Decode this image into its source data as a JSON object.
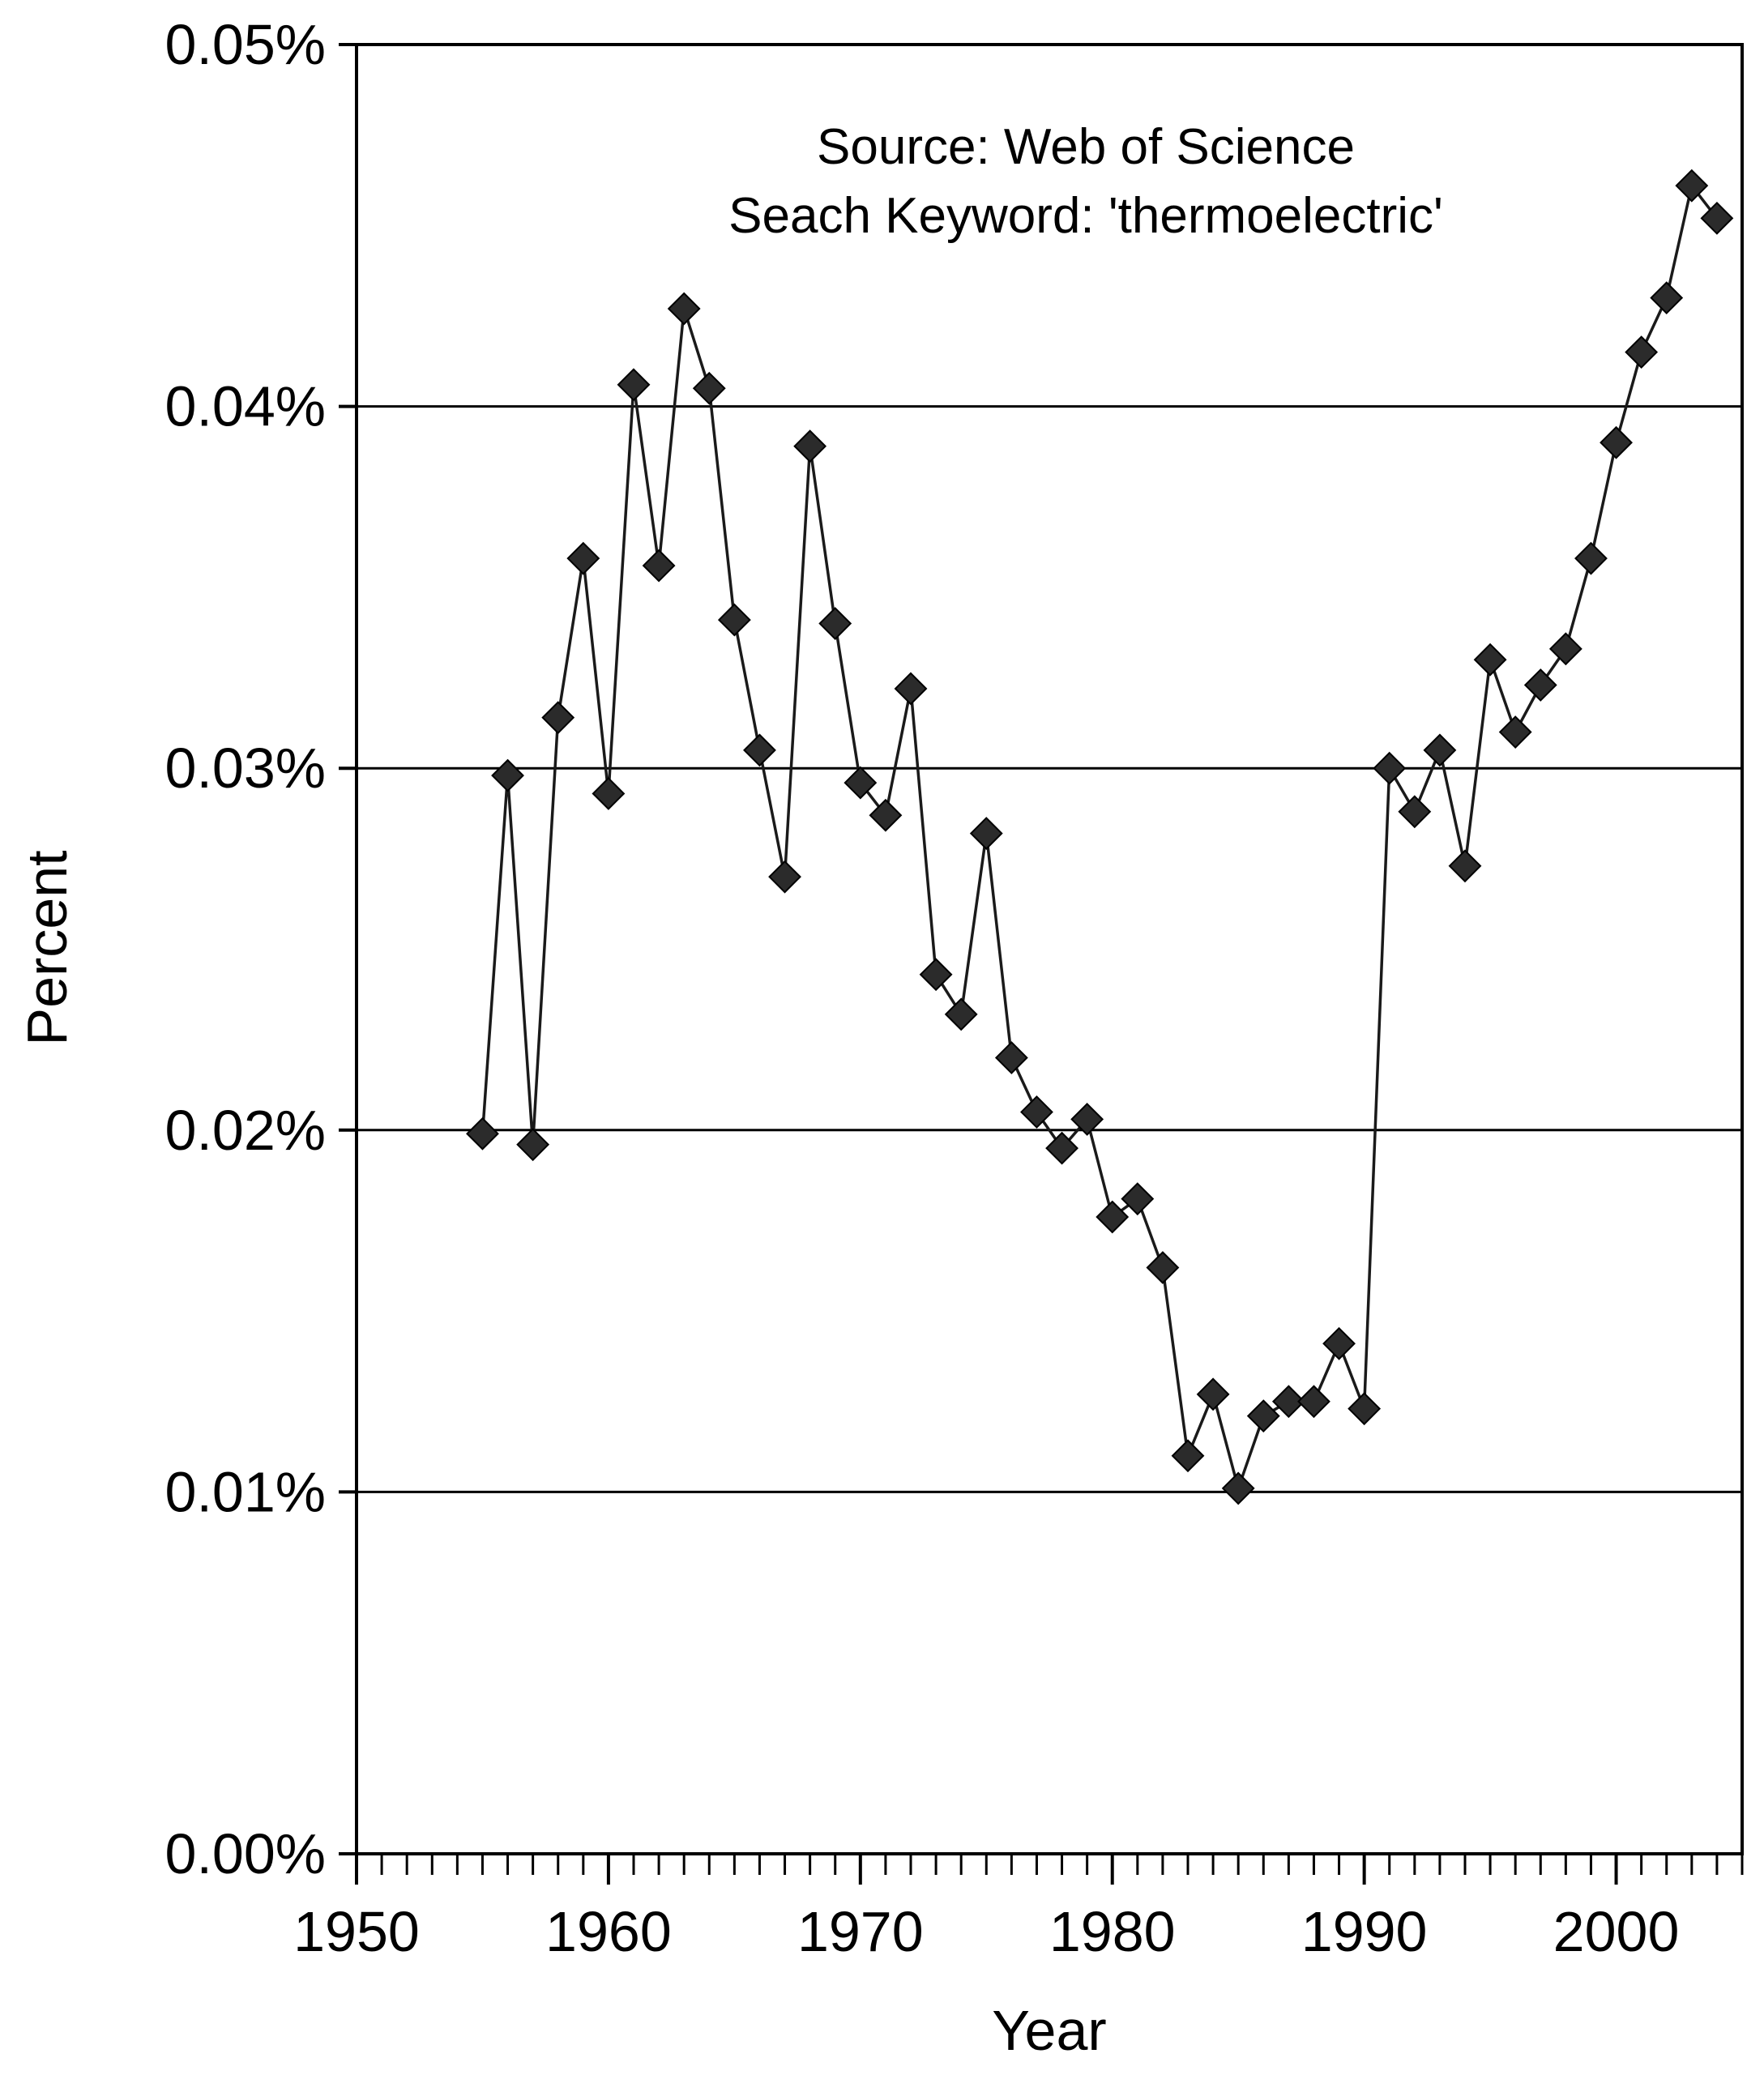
{
  "chart_data": {
    "type": "line",
    "title": "",
    "xlabel": "Year",
    "ylabel": "Percent",
    "xlim": [
      1950,
      2005
    ],
    "ylim": [
      0,
      0.05
    ],
    "x_ticks": [
      1950,
      1960,
      1970,
      1980,
      1990,
      2000
    ],
    "x_tick_labels": [
      "1950",
      "1960",
      "1970",
      "1980",
      "1990",
      "2000"
    ],
    "y_ticks": [
      0,
      0.01,
      0.02,
      0.03,
      0.04,
      0.05
    ],
    "y_tick_labels": [
      "0.00%",
      "0.01%",
      "0.02%",
      "0.03%",
      "0.04%",
      "0.05%"
    ],
    "gridlines": "horizontal",
    "marker": "diamond",
    "annotations": [
      "Source:  Web of Science",
      "Seach Keyword: 'thermoelectric'"
    ],
    "x": [
      1955,
      1956,
      1957,
      1958,
      1959,
      1960,
      1961,
      1962,
      1963,
      1964,
      1965,
      1966,
      1967,
      1968,
      1969,
      1970,
      1971,
      1972,
      1973,
      1974,
      1975,
      1976,
      1977,
      1978,
      1979,
      1980,
      1981,
      1982,
      1983,
      1984,
      1985,
      1986,
      1987,
      1988,
      1989,
      1990,
      1991,
      1992,
      1993,
      1994,
      1995,
      1996,
      1997,
      1998,
      1999,
      2000,
      2001,
      2002,
      2003,
      2004
    ],
    "y": [
      0.0199,
      0.0298,
      0.0196,
      0.0314,
      0.0358,
      0.0293,
      0.0406,
      0.0356,
      0.0427,
      0.0405,
      0.0341,
      0.0305,
      0.027,
      0.0389,
      0.034,
      0.0296,
      0.0287,
      0.0322,
      0.0243,
      0.0232,
      0.0282,
      0.022,
      0.0205,
      0.0195,
      0.0203,
      0.0176,
      0.0181,
      0.0162,
      0.011,
      0.0127,
      0.0101,
      0.0121,
      0.0125,
      0.0125,
      0.0141,
      0.0123,
      0.03,
      0.0288,
      0.0305,
      0.0273,
      0.033,
      0.031,
      0.0323,
      0.0333,
      0.0358,
      0.039,
      0.0415,
      0.043,
      0.0461,
      0.0452
    ]
  }
}
